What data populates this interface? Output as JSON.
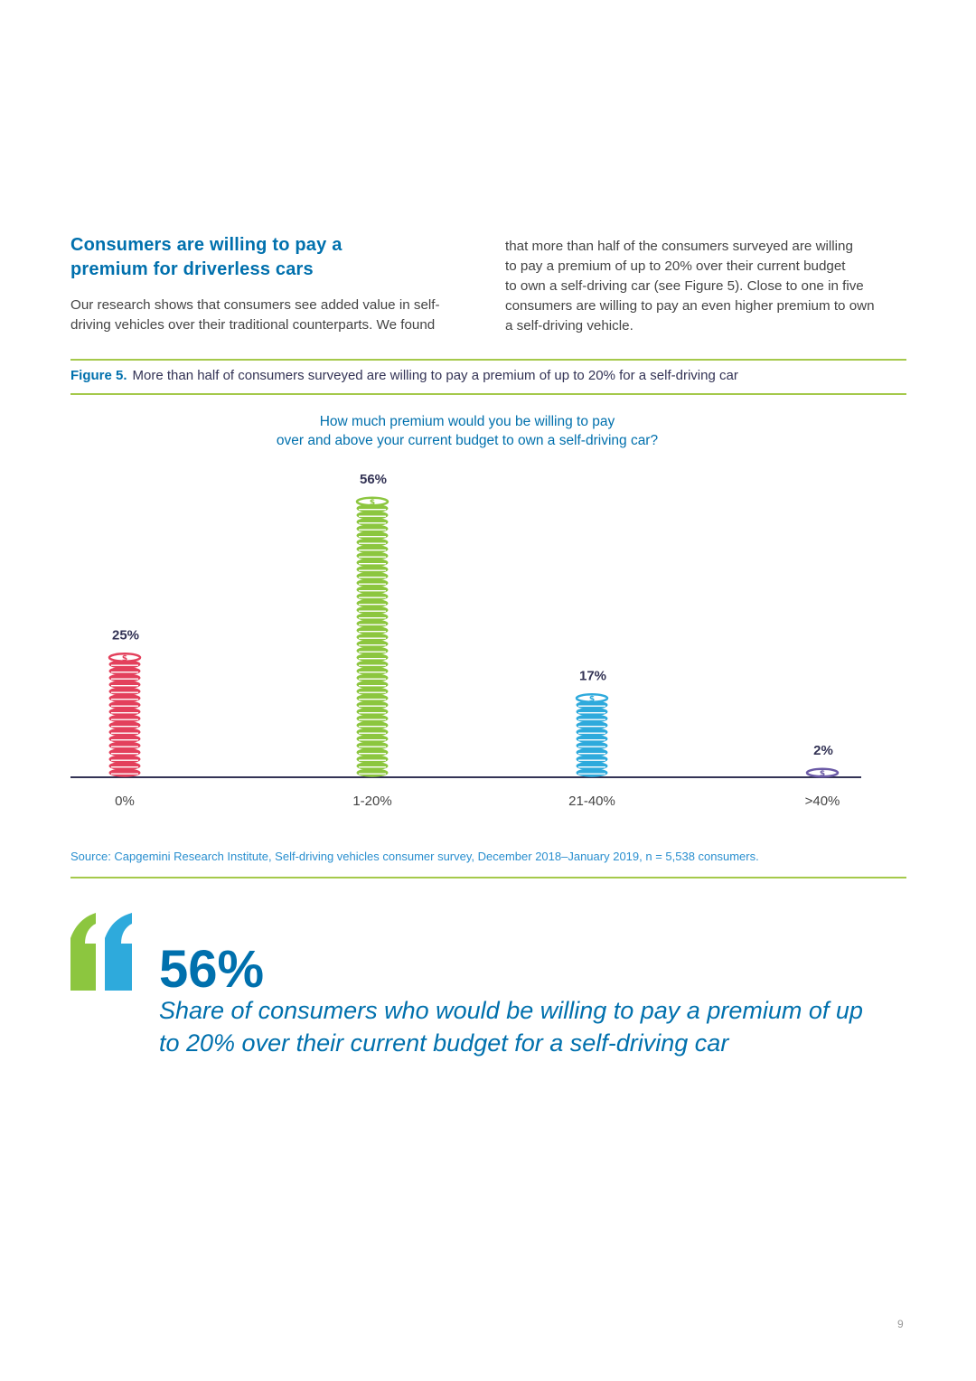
{
  "section": {
    "heading_line1": "Consumers are willing to pay a",
    "heading_line2": "premium for driverless cars",
    "para_left_line1": "Our research shows that consumers see added value in self-",
    "para_left_line2": "driving vehicles over their traditional counterparts. We found",
    "para_right_line1": "that more than half of the consumers surveyed are willing",
    "para_right_line2": "to pay a premium of up to 20% over their current budget",
    "para_right_line3": "to own a self-driving car (see Figure 5). Close to one in five",
    "para_right_line4": "consumers are willing to pay an even higher premium to own",
    "para_right_line5": "a self-driving vehicle."
  },
  "figure": {
    "label": "Figure 5.",
    "caption": "More than half of consumers surveyed are willing to pay a premium of up to 20% for a self-driving car",
    "question_line1": "How much premium would you be willing to pay",
    "question_line2": "over and above your current budget to own a self-driving car?",
    "source": "Source: Capgemini Research Institute, Self-driving vehicles consumer survey, December 2018–January 2019, n = 5,538 consumers."
  },
  "chart_data": {
    "type": "bar",
    "title": "How much premium would you be willing to pay over and above your current budget to own a self-driving car?",
    "categories": [
      "0%",
      "1-20%",
      "21-40%",
      ">40%"
    ],
    "values": [
      25,
      56,
      17,
      2
    ],
    "value_labels": [
      "25%",
      "56%",
      "17%",
      "2%"
    ],
    "unit": "%",
    "colors": [
      "#e3405c",
      "#8cc63f",
      "#2eaadc",
      "#6b5aa6"
    ],
    "grid": false,
    "axis_color": "#333355"
  },
  "callout": {
    "big_number": "56%",
    "text_line1": "Share of consumers who would be willing to pay a premium of up",
    "text_line2": "to 20% over their current budget for a self-driving car",
    "quote_colors": [
      "#8cc63f",
      "#2eaadc"
    ]
  },
  "page_number": "9"
}
